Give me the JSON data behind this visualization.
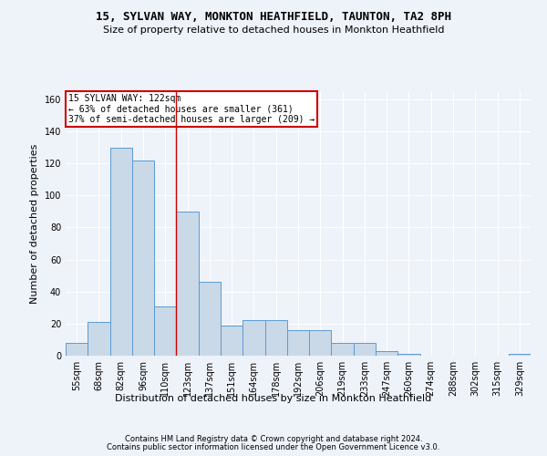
{
  "title": "15, SYLVAN WAY, MONKTON HEATHFIELD, TAUNTON, TA2 8PH",
  "subtitle": "Size of property relative to detached houses in Monkton Heathfield",
  "xlabel": "Distribution of detached houses by size in Monkton Heathfield",
  "ylabel": "Number of detached properties",
  "categories": [
    "55sqm",
    "68sqm",
    "82sqm",
    "96sqm",
    "110sqm",
    "123sqm",
    "137sqm",
    "151sqm",
    "164sqm",
    "178sqm",
    "192sqm",
    "206sqm",
    "219sqm",
    "233sqm",
    "247sqm",
    "260sqm",
    "274sqm",
    "288sqm",
    "302sqm",
    "315sqm",
    "329sqm"
  ],
  "values": [
    8,
    21,
    130,
    122,
    31,
    90,
    46,
    19,
    22,
    22,
    16,
    16,
    8,
    8,
    3,
    1,
    0,
    0,
    0,
    0,
    1
  ],
  "bar_color": "#c9d9e8",
  "bar_edge_color": "#5b9bd5",
  "annotation_text": "15 SYLVAN WAY: 122sqm\n← 63% of detached houses are smaller (361)\n37% of semi-detached houses are larger (209) →",
  "annotation_box_color": "#ffffff",
  "annotation_box_edge_color": "#cc0000",
  "vline_color": "#cc0000",
  "footer1": "Contains HM Land Registry data © Crown copyright and database right 2024.",
  "footer2": "Contains public sector information licensed under the Open Government Licence v3.0.",
  "background_color": "#eef2f9",
  "ylim": [
    0,
    165
  ],
  "yticks": [
    0,
    20,
    40,
    60,
    80,
    100,
    120,
    140,
    160
  ],
  "figsize": [
    6.0,
    5.0
  ],
  "dpi": 100,
  "title_fontsize": 9,
  "subtitle_fontsize": 8,
  "ylabel_fontsize": 8,
  "xlabel_fontsize": 8,
  "tick_fontsize": 7,
  "footer_fontsize": 6,
  "annot_fontsize": 7
}
